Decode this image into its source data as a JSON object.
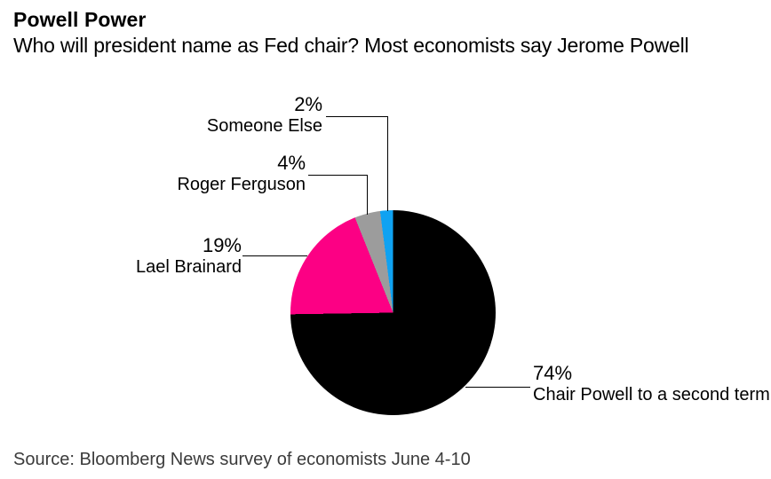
{
  "header": {
    "title": "Powell Power",
    "subtitle": "Who will president name as Fed chair? Most economists say Jerome Powell"
  },
  "chart_data": {
    "type": "pie",
    "title": "Powell Power",
    "subtitle": "Who will president name as Fed chair? Most economists say Jerome Powell",
    "unit": "percent of surveyed economists",
    "direction": "clockwise",
    "start_angle_deg": 0,
    "legend_position": "callout labels with leader lines",
    "slices": [
      {
        "label": "Chair Powell to a second term",
        "value_pct": 74,
        "color": "#000000"
      },
      {
        "label": "Lael Brainard",
        "value_pct": 19,
        "color": "#fc0084"
      },
      {
        "label": "Roger Ferguson",
        "value_pct": 4,
        "color": "#9c9c9c"
      },
      {
        "label": "Someone Else",
        "value_pct": 2,
        "color": "#0fa2f2"
      }
    ]
  },
  "callouts": {
    "someone_else": {
      "value": "2%",
      "name": "Someone Else"
    },
    "roger_ferguson": {
      "value": "4%",
      "name": "Roger Ferguson"
    },
    "lael_brainard": {
      "value": "19%",
      "name": "Lael Brainard"
    },
    "chair_powell": {
      "value": "74%",
      "name": "Chair Powell to a second term"
    }
  },
  "source": "Source: Bloomberg News survey of economists June 4-10"
}
